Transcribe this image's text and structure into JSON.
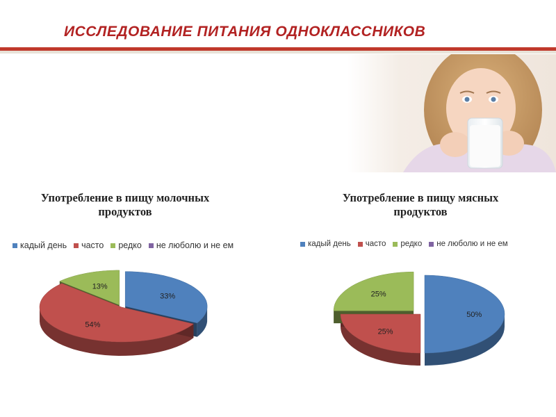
{
  "slide": {
    "title": "ИССЛЕДОВАНИЕ ПИТАНИЯ ОДНОКЛАССНИКОВ",
    "title_color": "#b22222"
  },
  "photo": {
    "description_icon": "girl-drinking-milk-photo"
  },
  "colors": {
    "blue": "#4f81bd",
    "red": "#c0504d",
    "green": "#9bbb59",
    "purple": "#8064a2"
  },
  "chart_data": [
    {
      "type": "pie",
      "title": "Употребление в пищу молочных продуктов",
      "legend": [
        "кадый день",
        "часто",
        "редко",
        "не люболю и не ем"
      ],
      "legend_position": "top",
      "values": [
        33,
        54,
        13,
        0
      ],
      "labels": [
        "33%",
        "54%",
        "13%",
        ""
      ]
    },
    {
      "type": "pie",
      "title": "Употребление в пищу мясных продуктов",
      "legend": [
        "кадый день",
        "часто",
        "редко",
        "не люболю и не ем"
      ],
      "legend_position": "top",
      "values": [
        50,
        25,
        25,
        0
      ],
      "labels": [
        "50%",
        "25%",
        "25%",
        ""
      ]
    }
  ]
}
